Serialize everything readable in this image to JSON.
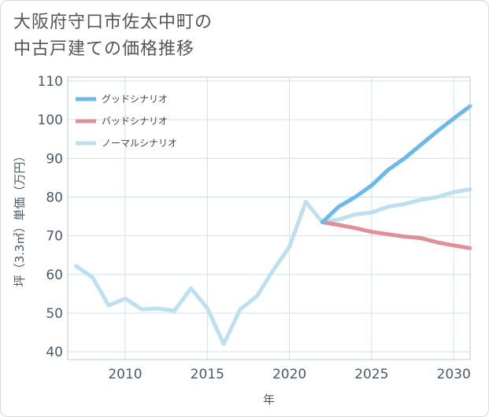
{
  "page": {
    "title_line1": "大阪府守口市佐太中町の",
    "title_line2": "中古戸建ての価格推移"
  },
  "chart_data": {
    "type": "line",
    "title": "大阪府守口市佐太中町の中古戸建ての価格推移",
    "xlabel": "年",
    "ylabel": "坪（3.3㎡）単価（万円）",
    "xlim": [
      2006.5,
      2031
    ],
    "ylim": [
      38,
      111
    ],
    "xticks": [
      2010,
      2015,
      2020,
      2025,
      2030
    ],
    "yticks": [
      40,
      50,
      60,
      70,
      80,
      90,
      100,
      110
    ],
    "grid": true,
    "legend_position": "top-left",
    "series": [
      {
        "name": "グッドシナリオ",
        "color": "#6cb8ea",
        "x": [
          2022,
          2023,
          2024,
          2025,
          2026,
          2027,
          2028,
          2029,
          2030,
          2031
        ],
        "y": [
          73.5,
          77.5,
          80.0,
          83.0,
          87.0,
          90.0,
          93.5,
          97.0,
          100.3,
          103.5
        ]
      },
      {
        "name": "バッドシナリオ",
        "color": "#e08f96",
        "x": [
          2022,
          2023,
          2024,
          2025,
          2026,
          2027,
          2028,
          2029,
          2030,
          2031
        ],
        "y": [
          73.5,
          72.8,
          72.0,
          71.0,
          70.4,
          69.8,
          69.4,
          68.3,
          67.5,
          66.8
        ]
      },
      {
        "name": "ノーマルシナリオ",
        "color": "#bde0ef",
        "x": [
          2007,
          2008,
          2009,
          2010,
          2011,
          2012,
          2013,
          2014,
          2015,
          2016,
          2017,
          2018,
          2019,
          2020,
          2021,
          2022,
          2023,
          2024,
          2025,
          2026,
          2027,
          2028,
          2029,
          2030,
          2031
        ],
        "y": [
          62.2,
          59.3,
          52.0,
          53.8,
          51.0,
          51.2,
          50.6,
          56.4,
          51.3,
          42.0,
          51.0,
          54.3,
          61.0,
          67.2,
          78.8,
          73.5,
          74.2,
          75.5,
          76.0,
          77.5,
          78.2,
          79.3,
          80.0,
          81.3,
          82.0
        ]
      }
    ]
  }
}
